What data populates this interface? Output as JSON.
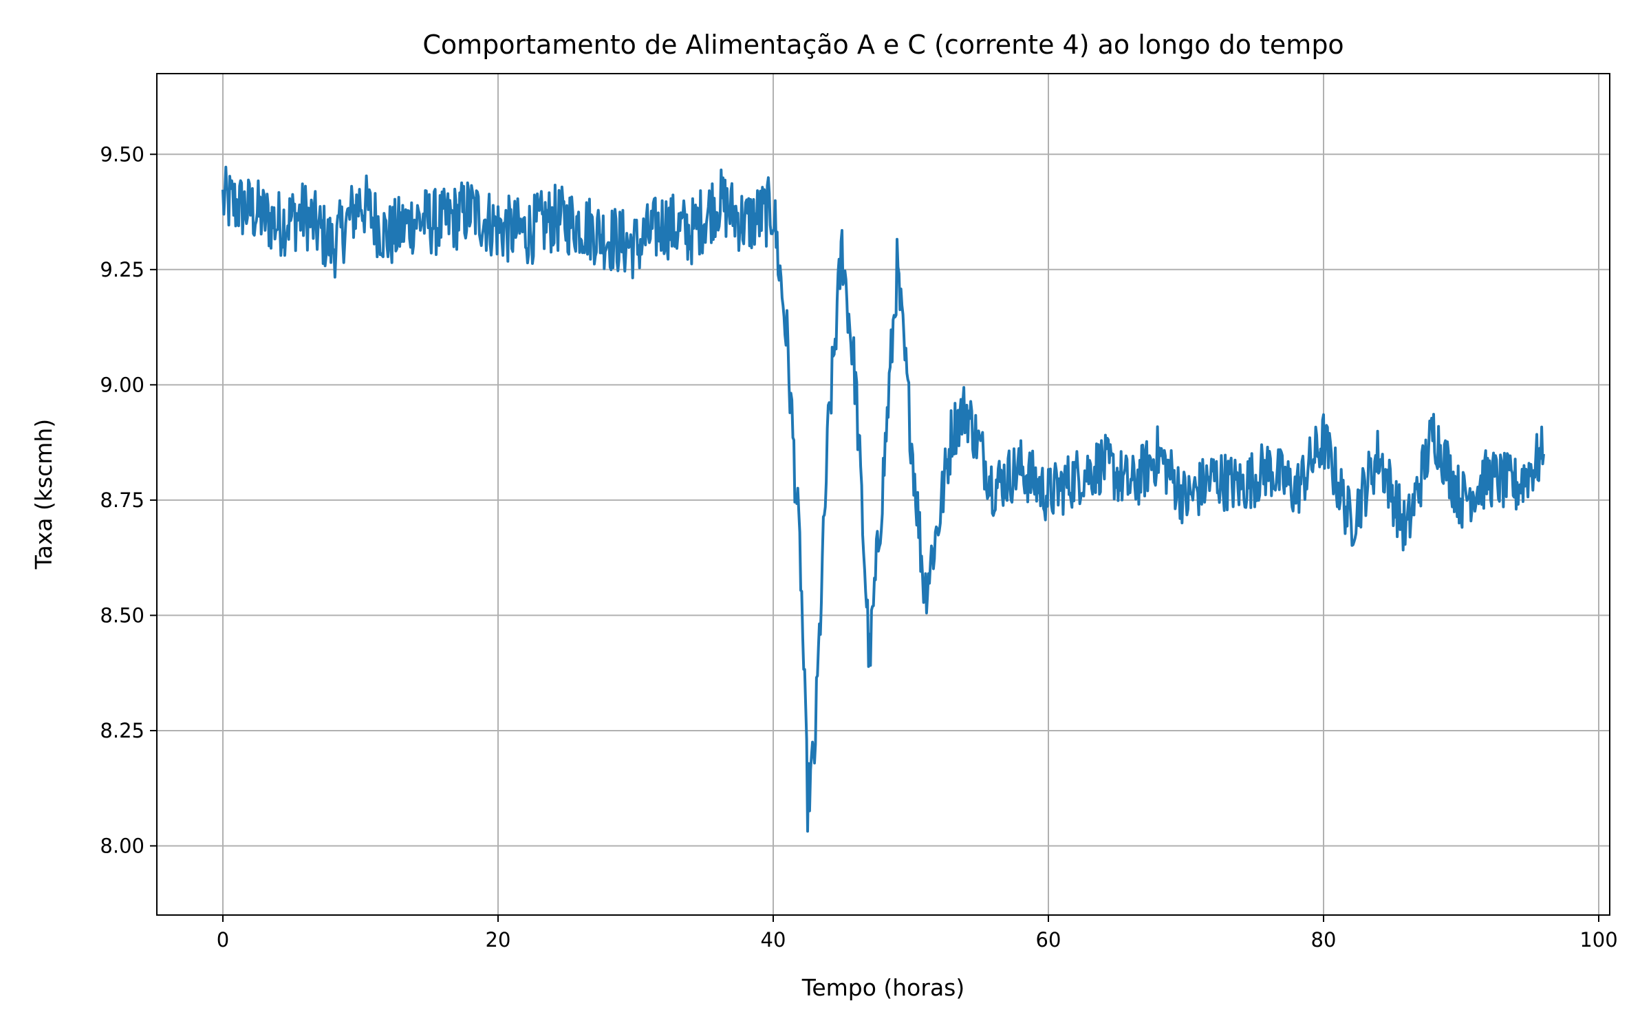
{
  "chart_data": {
    "type": "line",
    "title": "Comportamento de Alimentação A e C (corrente 4) ao longo do tempo",
    "xlabel": "Tempo (horas)",
    "ylabel": "Taxa (kscmh)",
    "xlim": [
      -4.8,
      100.8
    ],
    "ylim": [
      7.85,
      9.675
    ],
    "xticks": [
      0,
      20,
      40,
      60,
      80,
      100
    ],
    "xtick_labels": [
      "0",
      "20",
      "40",
      "60",
      "80",
      "100"
    ],
    "yticks": [
      8.0,
      8.25,
      8.5,
      8.75,
      9.0,
      9.25,
      9.5
    ],
    "ytick_labels": [
      "8.00",
      "8.25",
      "8.50",
      "8.75",
      "9.00",
      "9.25",
      "9.50"
    ],
    "grid": true,
    "series_color": "#1f77b4",
    "series": [
      {
        "x": [
          0,
          2,
          4,
          6,
          8,
          10,
          12,
          14,
          16,
          18,
          20,
          22,
          24,
          26,
          28,
          30,
          32,
          34,
          36,
          38,
          40,
          41,
          42,
          42.5,
          43,
          44,
          45,
          46,
          47,
          48,
          49,
          50,
          51,
          52,
          53,
          54,
          56,
          58,
          60,
          62,
          64,
          66,
          68,
          70,
          72,
          74,
          76,
          78,
          80,
          82,
          84,
          86,
          88,
          90,
          92,
          94,
          96
        ],
        "values": [
          9.4,
          9.38,
          9.35,
          9.37,
          9.3,
          9.4,
          9.32,
          9.36,
          9.35,
          9.38,
          9.34,
          9.33,
          9.36,
          9.35,
          9.32,
          9.3,
          9.35,
          9.33,
          9.4,
          9.35,
          9.38,
          9.1,
          8.6,
          8.1,
          8.2,
          8.9,
          9.3,
          9.0,
          8.4,
          8.8,
          9.25,
          8.9,
          8.55,
          8.7,
          8.9,
          8.95,
          8.78,
          8.82,
          8.76,
          8.8,
          8.83,
          8.78,
          8.85,
          8.75,
          8.8,
          8.78,
          8.82,
          8.77,
          8.88,
          8.7,
          8.85,
          8.68,
          8.9,
          8.75,
          8.8,
          8.78,
          8.85
        ]
      }
    ]
  }
}
